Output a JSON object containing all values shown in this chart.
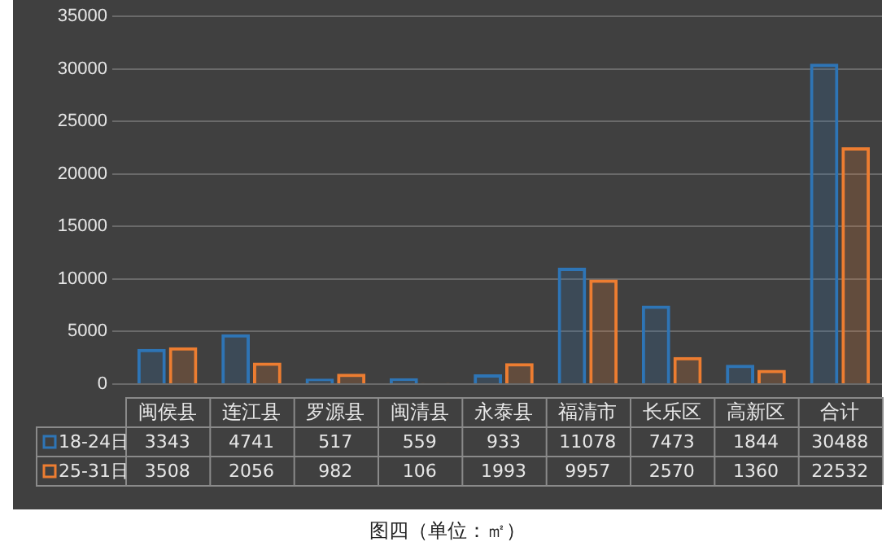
{
  "chart_data": {
    "type": "bar",
    "title": "图四（单位：㎡）",
    "categories": [
      "闽侯县",
      "连江县",
      "罗源县",
      "闽清县",
      "永泰县",
      "福清市",
      "长乐区",
      "高新区",
      "合计"
    ],
    "series": [
      {
        "name": "18-24日",
        "color": "#2e75b6",
        "values": [
          3343,
          4741,
          517,
          559,
          933,
          11078,
          7473,
          1844,
          30488
        ]
      },
      {
        "name": "25-31日",
        "color": "#ed7d31",
        "values": [
          3508,
          2056,
          982,
          106,
          1993,
          9957,
          2570,
          1360,
          22532
        ]
      }
    ],
    "ylim": [
      0,
      35000
    ],
    "yticks": [
      0,
      5000,
      10000,
      15000,
      20000,
      25000,
      30000,
      35000
    ],
    "grid": "y",
    "legend": "bottom",
    "data_labels": true
  }
}
